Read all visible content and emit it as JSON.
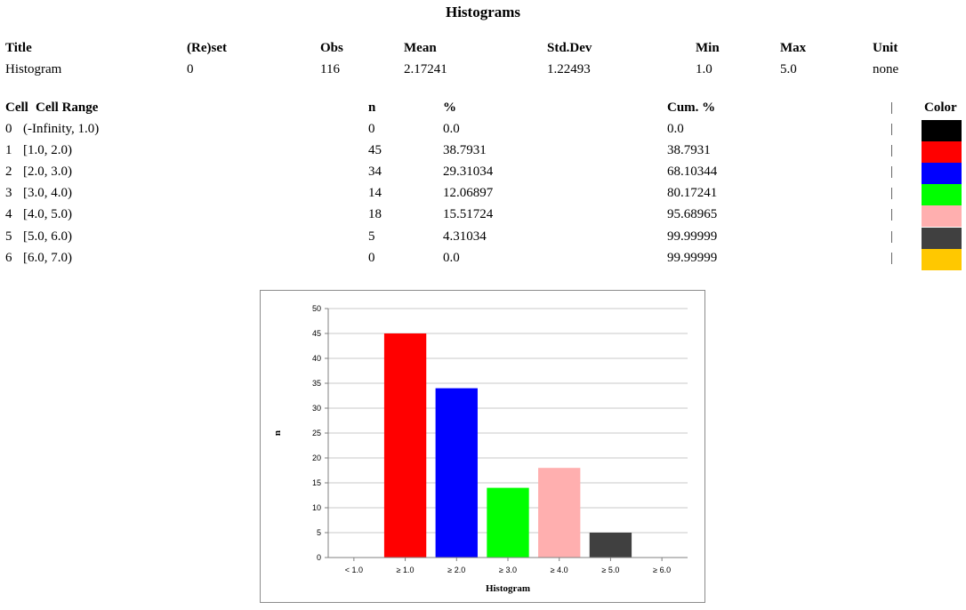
{
  "page": {
    "title": "Histograms"
  },
  "summary": {
    "headers": {
      "title": "Title",
      "reset": "(Re)set",
      "obs": "Obs",
      "mean": "Mean",
      "stddev": "Std.Dev",
      "min": "Min",
      "max": "Max",
      "unit": "Unit"
    },
    "values": {
      "title": "Histogram",
      "reset": "0",
      "obs": "116",
      "mean": "2.17241",
      "stddev": "1.22493",
      "min": "1.0",
      "max": "5.0",
      "unit": "none"
    }
  },
  "cells": {
    "headers": {
      "cell": "Cell",
      "range": "Cell Range",
      "n": "n",
      "pct": "%",
      "cum": "Cum. %",
      "sep": "|",
      "color": "Color"
    },
    "rows": [
      {
        "cell": "0",
        "range": "(-Infinity, 1.0)",
        "n": "0",
        "pct": "0.0",
        "cum": "0.0",
        "sep": "|",
        "color": "#000000"
      },
      {
        "cell": "1",
        "range": "[1.0, 2.0)",
        "n": "45",
        "pct": "38.7931",
        "cum": "38.7931",
        "sep": "|",
        "color": "#ff0000"
      },
      {
        "cell": "2",
        "range": "[2.0, 3.0)",
        "n": "34",
        "pct": "29.31034",
        "cum": "68.10344",
        "sep": "|",
        "color": "#0000ff"
      },
      {
        "cell": "3",
        "range": "[3.0, 4.0)",
        "n": "14",
        "pct": "12.06897",
        "cum": "80.17241",
        "sep": "|",
        "color": "#00ff00"
      },
      {
        "cell": "4",
        "range": "[4.0, 5.0)",
        "n": "18",
        "pct": "15.51724",
        "cum": "95.68965",
        "sep": "|",
        "color": "#ffafaf"
      },
      {
        "cell": "5",
        "range": "[5.0, 6.0)",
        "n": "5",
        "pct": "4.31034",
        "cum": "99.99999",
        "sep": "|",
        "color": "#404040"
      },
      {
        "cell": "6",
        "range": "[6.0, 7.0)",
        "n": "0",
        "pct": "0.0",
        "cum": "99.99999",
        "sep": "|",
        "color": "#ffc800"
      }
    ]
  },
  "chart_data": {
    "type": "bar",
    "categories": [
      "< 1.0",
      "≥ 1.0",
      "≥ 2.0",
      "≥ 3.0",
      "≥ 4.0",
      "≥ 5.0",
      "≥ 6.0"
    ],
    "values": [
      0,
      45,
      34,
      14,
      18,
      5,
      0
    ],
    "colors": [
      "#000000",
      "#ff0000",
      "#0000ff",
      "#00ff00",
      "#ffafaf",
      "#404040",
      "#ffc800"
    ],
    "xlabel": "Histogram",
    "ylabel": "n",
    "ylim": [
      0,
      50
    ],
    "yticks": [
      0,
      5,
      10,
      15,
      20,
      25,
      30,
      35,
      40,
      45,
      50
    ],
    "grid": true
  }
}
